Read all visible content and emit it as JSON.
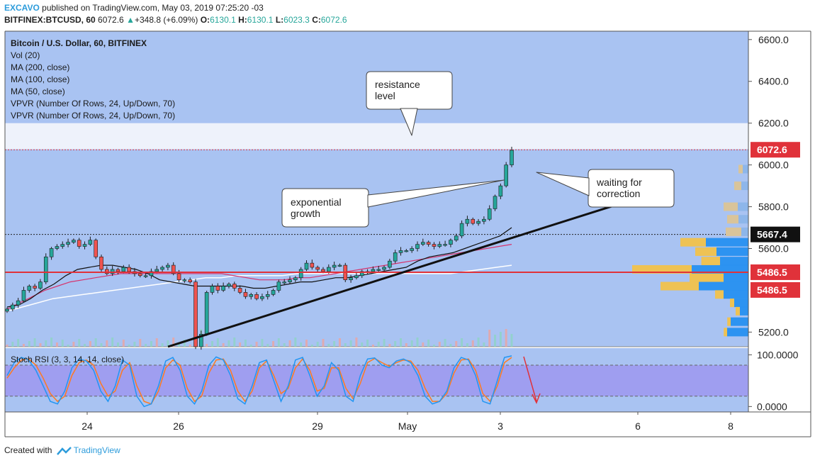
{
  "header": {
    "author": "EXCAVO",
    "published": "published on TradingView.com, May 03, 2019 07:25:20 -03",
    "symbol": "BITFINEX:BTCUSD, 60",
    "last": "6072.6",
    "change_arrow": "▲",
    "change": "+348.8 (+6.09%)",
    "o_label": "O:",
    "o_value": "6130.1",
    "h_label": "H:",
    "h_value": "6130.1",
    "l_label": "L:",
    "l_value": "6023.3",
    "c_label": "C:",
    "c_value": "6072.6"
  },
  "legend": {
    "title": "Bitcoin / U.S. Dollar, 60, BITFINEX",
    "items": [
      "Vol (20)",
      "MA (200, close)",
      "MA (100, close)",
      "MA (50, close)",
      "VPVR (Number Of Rows, 24, Up/Down, 70)",
      "VPVR (Number Of Rows, 24, Up/Down, 70)"
    ]
  },
  "annotations": {
    "resistance": "resistance\nlevel",
    "exponential": "exponential\ngrowth",
    "waiting": "waiting for\ncorrection"
  },
  "stoch_label": "Stoch RSI (3, 3, 14, 14, close)",
  "footer": {
    "created_with": "Created with",
    "brand": "TradingView"
  },
  "colors": {
    "background": "#a9c3f2",
    "resistance_zone": "#eef2fb",
    "candle_up": "#26a69a",
    "candle_down": "#ef5350",
    "support_line": "#e0323a",
    "price_label": "#e0323a",
    "ma50": "#111111",
    "ma100": "#d6336c",
    "ma200": "#ffffff",
    "stoch_k": "#2196f3",
    "stoch_d": "#ff7a1f",
    "stoch_band": "#9b8ff0",
    "vpvr_up": "#1f8ef1",
    "vpvr_down": "#f5c242"
  },
  "chart_data": [
    {
      "type": "candlestick",
      "title": "Bitcoin / U.S. Dollar, 60, BITFINEX",
      "x_tick_labels": [
        "24",
        "26",
        "29",
        "May",
        "3",
        "6",
        "8"
      ],
      "y_tick_labels": [
        "6600.0",
        "6400.0",
        "6200.0",
        "6000.0",
        "5800.0",
        "5600.0",
        "5200.0"
      ],
      "ylim": [
        5130,
        6640
      ],
      "price_labels": [
        "6072.6",
        "5667.4",
        "5486.5",
        "5486.5"
      ],
      "current_price": 6072.6,
      "reference_price": 5667.4,
      "support_level": 5486.5,
      "resistance_zone": [
        6075,
        6200
      ],
      "trendline": [
        {
          "x": "25 Apr",
          "y": 5130
        },
        {
          "x": "6 May",
          "y": 5820
        }
      ],
      "close_series": [
        5310,
        5330,
        5350,
        5400,
        5420,
        5410,
        5440,
        5560,
        5600,
        5610,
        5620,
        5630,
        5640,
        5610,
        5620,
        5640,
        5560,
        5500,
        5480,
        5500,
        5490,
        5510,
        5490,
        5480,
        5470,
        5470,
        5490,
        5500,
        5510,
        5520,
        5480,
        5450,
        5450,
        5440,
        5130,
        5190,
        5390,
        5420,
        5400,
        5420,
        5430,
        5410,
        5390,
        5370,
        5380,
        5360,
        5370,
        5380,
        5400,
        5440,
        5440,
        5450,
        5460,
        5500,
        5530,
        5510,
        5500,
        5490,
        5510,
        5520,
        5520,
        5450,
        5460,
        5470,
        5490,
        5490,
        5500,
        5500,
        5510,
        5540,
        5580,
        5590,
        5590,
        5600,
        5620,
        5630,
        5620,
        5610,
        5620,
        5620,
        5640,
        5660,
        5720,
        5740,
        5720,
        5730,
        5740,
        5790,
        5850,
        5900,
        6000,
        6070
      ],
      "ma50": [
        5320,
        5330,
        5360,
        5400,
        5430,
        5470,
        5500,
        5510,
        5520,
        5520,
        5510,
        5500,
        5480,
        5450,
        5440,
        5430,
        5420,
        5420,
        5420,
        5420,
        5420,
        5410,
        5410,
        5420,
        5430,
        5440,
        5440,
        5450,
        5460,
        5460,
        5470,
        5480,
        5490,
        5500,
        5510,
        5540,
        5560,
        5570,
        5580,
        5600,
        5620,
        5640,
        5660,
        5700
      ],
      "ma100": [
        5310,
        5340,
        5370,
        5400,
        5420,
        5440,
        5450,
        5460,
        5470,
        5480,
        5480,
        5480,
        5480,
        5480,
        5480,
        5480,
        5480,
        5480,
        5470,
        5460,
        5450,
        5450,
        5450,
        5460,
        5460,
        5470,
        5480,
        5490,
        5500,
        5510,
        5520,
        5530,
        5540,
        5550,
        5560,
        5570,
        5580,
        5590,
        5600,
        5610,
        5620
      ],
      "ma200": [
        5300,
        5320,
        5340,
        5360,
        5370,
        5380,
        5390,
        5400,
        5410,
        5420,
        5430,
        5440,
        5450,
        5460,
        5460,
        5470,
        5470,
        5470,
        5470,
        5480,
        5480,
        5480,
        5480,
        5480,
        5480,
        5480,
        5480,
        5480,
        5480,
        5480,
        5490,
        5500,
        5510,
        5520
      ],
      "volume_profile": [
        {
          "price": 5630,
          "up": 30,
          "down": 60
        },
        {
          "price": 5585,
          "up": 25,
          "down": 45
        },
        {
          "price": 5540,
          "up": 22,
          "down": 40
        },
        {
          "price": 5500,
          "up": 70,
          "down": 80
        },
        {
          "price": 5460,
          "up": 40,
          "down": 35
        },
        {
          "price": 5420,
          "up": 45,
          "down": 70
        },
        {
          "price": 5380,
          "up": 10,
          "down": 35
        },
        {
          "price": 5340,
          "up": 5,
          "down": 20
        },
        {
          "price": 5300,
          "up": 5,
          "down": 12
        },
        {
          "price": 5250,
          "up": 4,
          "down": 25
        },
        {
          "price": 5200,
          "up": 4,
          "down": 30
        }
      ]
    },
    {
      "type": "line",
      "title": "Stoch RSI (3, 3, 14, 14, close)",
      "y_tick_labels": [
        "100.0000",
        "0.0000"
      ],
      "ylim": [
        -5,
        102
      ],
      "band": [
        20,
        80
      ],
      "series": [
        {
          "name": "K",
          "values": [
            60,
            85,
            95,
            90,
            70,
            40,
            10,
            5,
            30,
            75,
            92,
            88,
            70,
            30,
            10,
            40,
            90,
            80,
            20,
            0,
            5,
            40,
            88,
            95,
            70,
            20,
            5,
            30,
            80,
            96,
            90,
            60,
            15,
            5,
            40,
            85,
            90,
            50,
            10,
            40,
            90,
            95,
            60,
            20,
            40,
            85,
            70,
            20,
            10,
            60,
            92,
            94,
            80,
            75,
            88,
            92,
            85,
            60,
            20,
            5,
            10,
            30,
            75,
            95,
            90,
            60,
            10,
            5,
            50,
            95,
            98
          ]
        },
        {
          "name": "D",
          "values": [
            55,
            75,
            90,
            92,
            80,
            55,
            25,
            10,
            20,
            60,
            85,
            90,
            80,
            45,
            20,
            30,
            70,
            85,
            40,
            10,
            5,
            30,
            75,
            90,
            80,
            35,
            10,
            20,
            65,
            90,
            92,
            70,
            30,
            10,
            30,
            75,
            88,
            60,
            25,
            35,
            75,
            92,
            70,
            30,
            35,
            75,
            75,
            35,
            15,
            45,
            85,
            93,
            85,
            78,
            85,
            90,
            88,
            70,
            35,
            10,
            10,
            25,
            65,
            90,
            92,
            70,
            25,
            10,
            40,
            85,
            95
          ]
        }
      ]
    }
  ]
}
